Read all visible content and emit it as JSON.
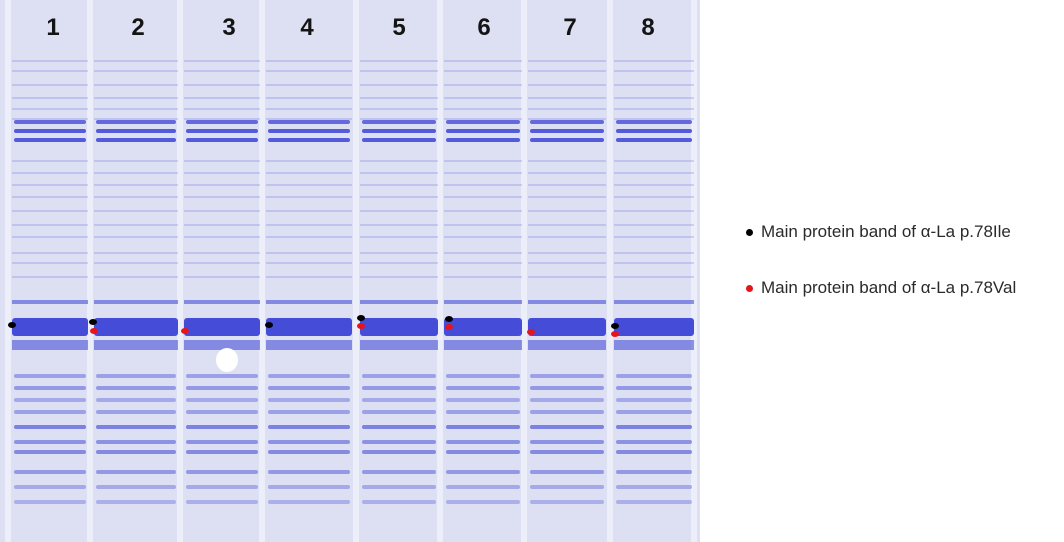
{
  "gel": {
    "lanes": [
      "1",
      "2",
      "3",
      "4",
      "5",
      "6",
      "7",
      "8"
    ],
    "colors": {
      "background": "#dde0f2",
      "band": "#3b43d6",
      "marker_ile": "#000000",
      "marker_val": "#e8141c",
      "bubble": "#ffffff"
    }
  },
  "legend": {
    "items": [
      {
        "label": "Main protein band of α-La p.78Ile",
        "color": "#000000",
        "icon": "black-dot-icon"
      },
      {
        "label": "Main protein band of α-La p.78Val",
        "color": "#e8141c",
        "icon": "red-dot-icon"
      }
    ]
  }
}
